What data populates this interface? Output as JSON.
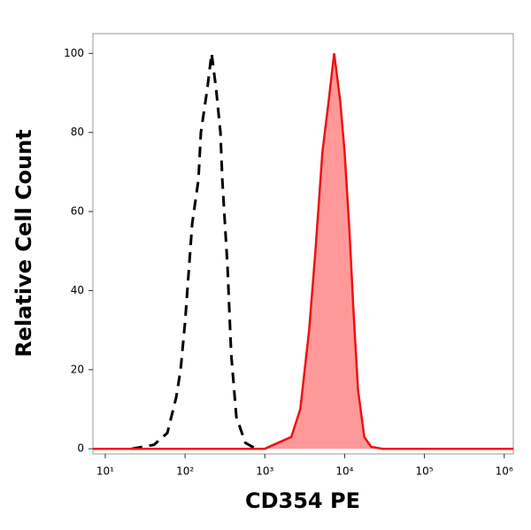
{
  "chart_data": {
    "type": "line",
    "x_label": "CD354 PE",
    "y_label": "Relative Cell Count",
    "xscale": "log",
    "xlim": [
      7,
      1300000
    ],
    "ylim": [
      -1.3,
      105
    ],
    "xticks": [
      {
        "value": 10,
        "label": "10¹"
      },
      {
        "value": 100,
        "label": "10²"
      },
      {
        "value": 1000,
        "label": "10³"
      },
      {
        "value": 10000,
        "label": "10⁴"
      },
      {
        "value": 100000,
        "label": "10⁵"
      },
      {
        "value": 1000000,
        "label": "10⁶"
      }
    ],
    "yticks": [
      0,
      20,
      40,
      60,
      80,
      100
    ],
    "series": [
      {
        "color": "#000000",
        "dashed": true,
        "filled": false,
        "x": [
          21.5,
          40.8,
          60,
          77.4,
          88,
          100,
          123,
          147,
          158,
          190,
          215,
          245,
          278,
          293,
          341,
          378,
          440,
          570,
          774
        ],
        "values": [
          0,
          1,
          4,
          13,
          20,
          32,
          57,
          68,
          80,
          91,
          100,
          91,
          80,
          68,
          46,
          24,
          8,
          1.5,
          0
        ]
      },
      {
        "color": "#ee1111",
        "fill": "#ff9999",
        "dashed": false,
        "filled": true,
        "x": [
          7,
          1000,
          1290,
          2150,
          2780,
          3590,
          4300,
          5270,
          6310,
          7400,
          8800,
          10000,
          11500,
          12900,
          14700,
          17600,
          21500,
          30000,
          1300000
        ],
        "values": [
          0,
          0,
          1,
          3,
          10,
          30,
          50,
          75,
          88,
          100,
          88,
          75,
          55,
          35,
          15,
          3,
          0.5,
          0,
          0
        ]
      }
    ]
  }
}
